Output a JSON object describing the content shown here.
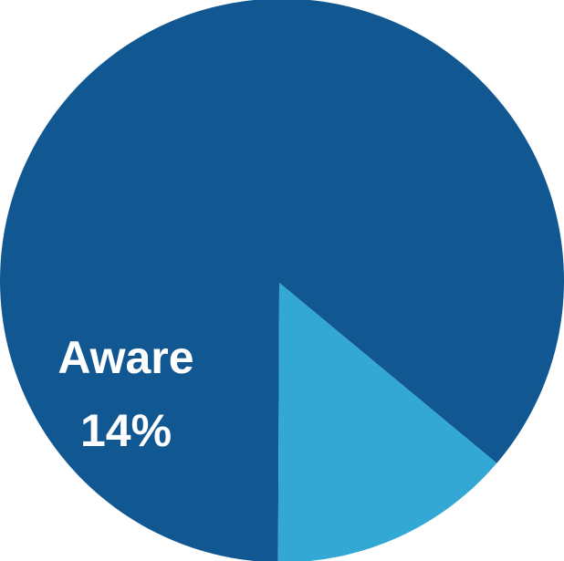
{
  "chart_data": {
    "type": "pie",
    "title": "",
    "colors": {
      "background": "#ffffff"
    },
    "slices": [
      {
        "label": "",
        "value": 86,
        "color": "#115892"
      },
      {
        "label": "Aware",
        "value": 14,
        "value_label": "14%",
        "color": "#34a8d4"
      }
    ]
  }
}
